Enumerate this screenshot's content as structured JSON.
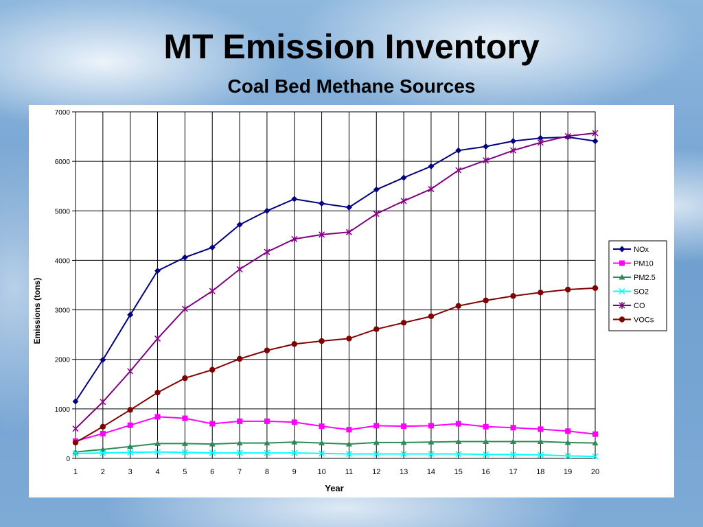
{
  "slide": {
    "title": "MT Emission Inventory",
    "subtitle": "Coal Bed Methane Sources"
  },
  "chart_data": {
    "type": "line",
    "xlabel": "Year",
    "ylabel": "Emissions (tons)",
    "x": [
      1,
      2,
      3,
      4,
      5,
      6,
      7,
      8,
      9,
      10,
      11,
      12,
      13,
      14,
      15,
      16,
      17,
      18,
      19,
      20
    ],
    "ylim": [
      0,
      7000
    ],
    "yticks": [
      0,
      1000,
      2000,
      3000,
      4000,
      5000,
      6000,
      7000
    ],
    "grid": true,
    "legend_position": "right",
    "series": [
      {
        "name": "NOx",
        "color": "#000080",
        "marker": "diamond",
        "values": [
          1150,
          1990,
          2900,
          3790,
          4060,
          4260,
          4720,
          5000,
          5240,
          5150,
          5070,
          5430,
          5670,
          5900,
          6220,
          6300,
          6410,
          6470,
          6490,
          6410
        ]
      },
      {
        "name": "PM10",
        "color": "#ff00ff",
        "marker": "square",
        "values": [
          350,
          500,
          670,
          840,
          810,
          700,
          750,
          750,
          730,
          650,
          580,
          660,
          650,
          660,
          700,
          640,
          620,
          590,
          550,
          490
        ]
      },
      {
        "name": "PM2.5",
        "color": "#2e8b57",
        "marker": "triangle",
        "values": [
          130,
          180,
          240,
          300,
          300,
          290,
          310,
          310,
          330,
          310,
          290,
          320,
          320,
          330,
          340,
          340,
          340,
          340,
          320,
          310
        ]
      },
      {
        "name": "SO2",
        "color": "#00ffff",
        "marker": "x",
        "values": [
          100,
          110,
          120,
          130,
          120,
          110,
          110,
          110,
          110,
          100,
          90,
          90,
          90,
          90,
          90,
          80,
          80,
          70,
          50,
          40
        ]
      },
      {
        "name": "CO",
        "color": "#800080",
        "marker": "star",
        "values": [
          600,
          1140,
          1760,
          2420,
          3020,
          3380,
          3820,
          4170,
          4430,
          4520,
          4570,
          4940,
          5200,
          5440,
          5820,
          6020,
          6220,
          6380,
          6510,
          6570
        ]
      },
      {
        "name": "VOCs",
        "color": "#800000",
        "marker": "circle",
        "values": [
          320,
          640,
          980,
          1330,
          1620,
          1790,
          2010,
          2180,
          2310,
          2370,
          2420,
          2610,
          2740,
          2870,
          3080,
          3190,
          3280,
          3350,
          3410,
          3440
        ]
      }
    ]
  }
}
